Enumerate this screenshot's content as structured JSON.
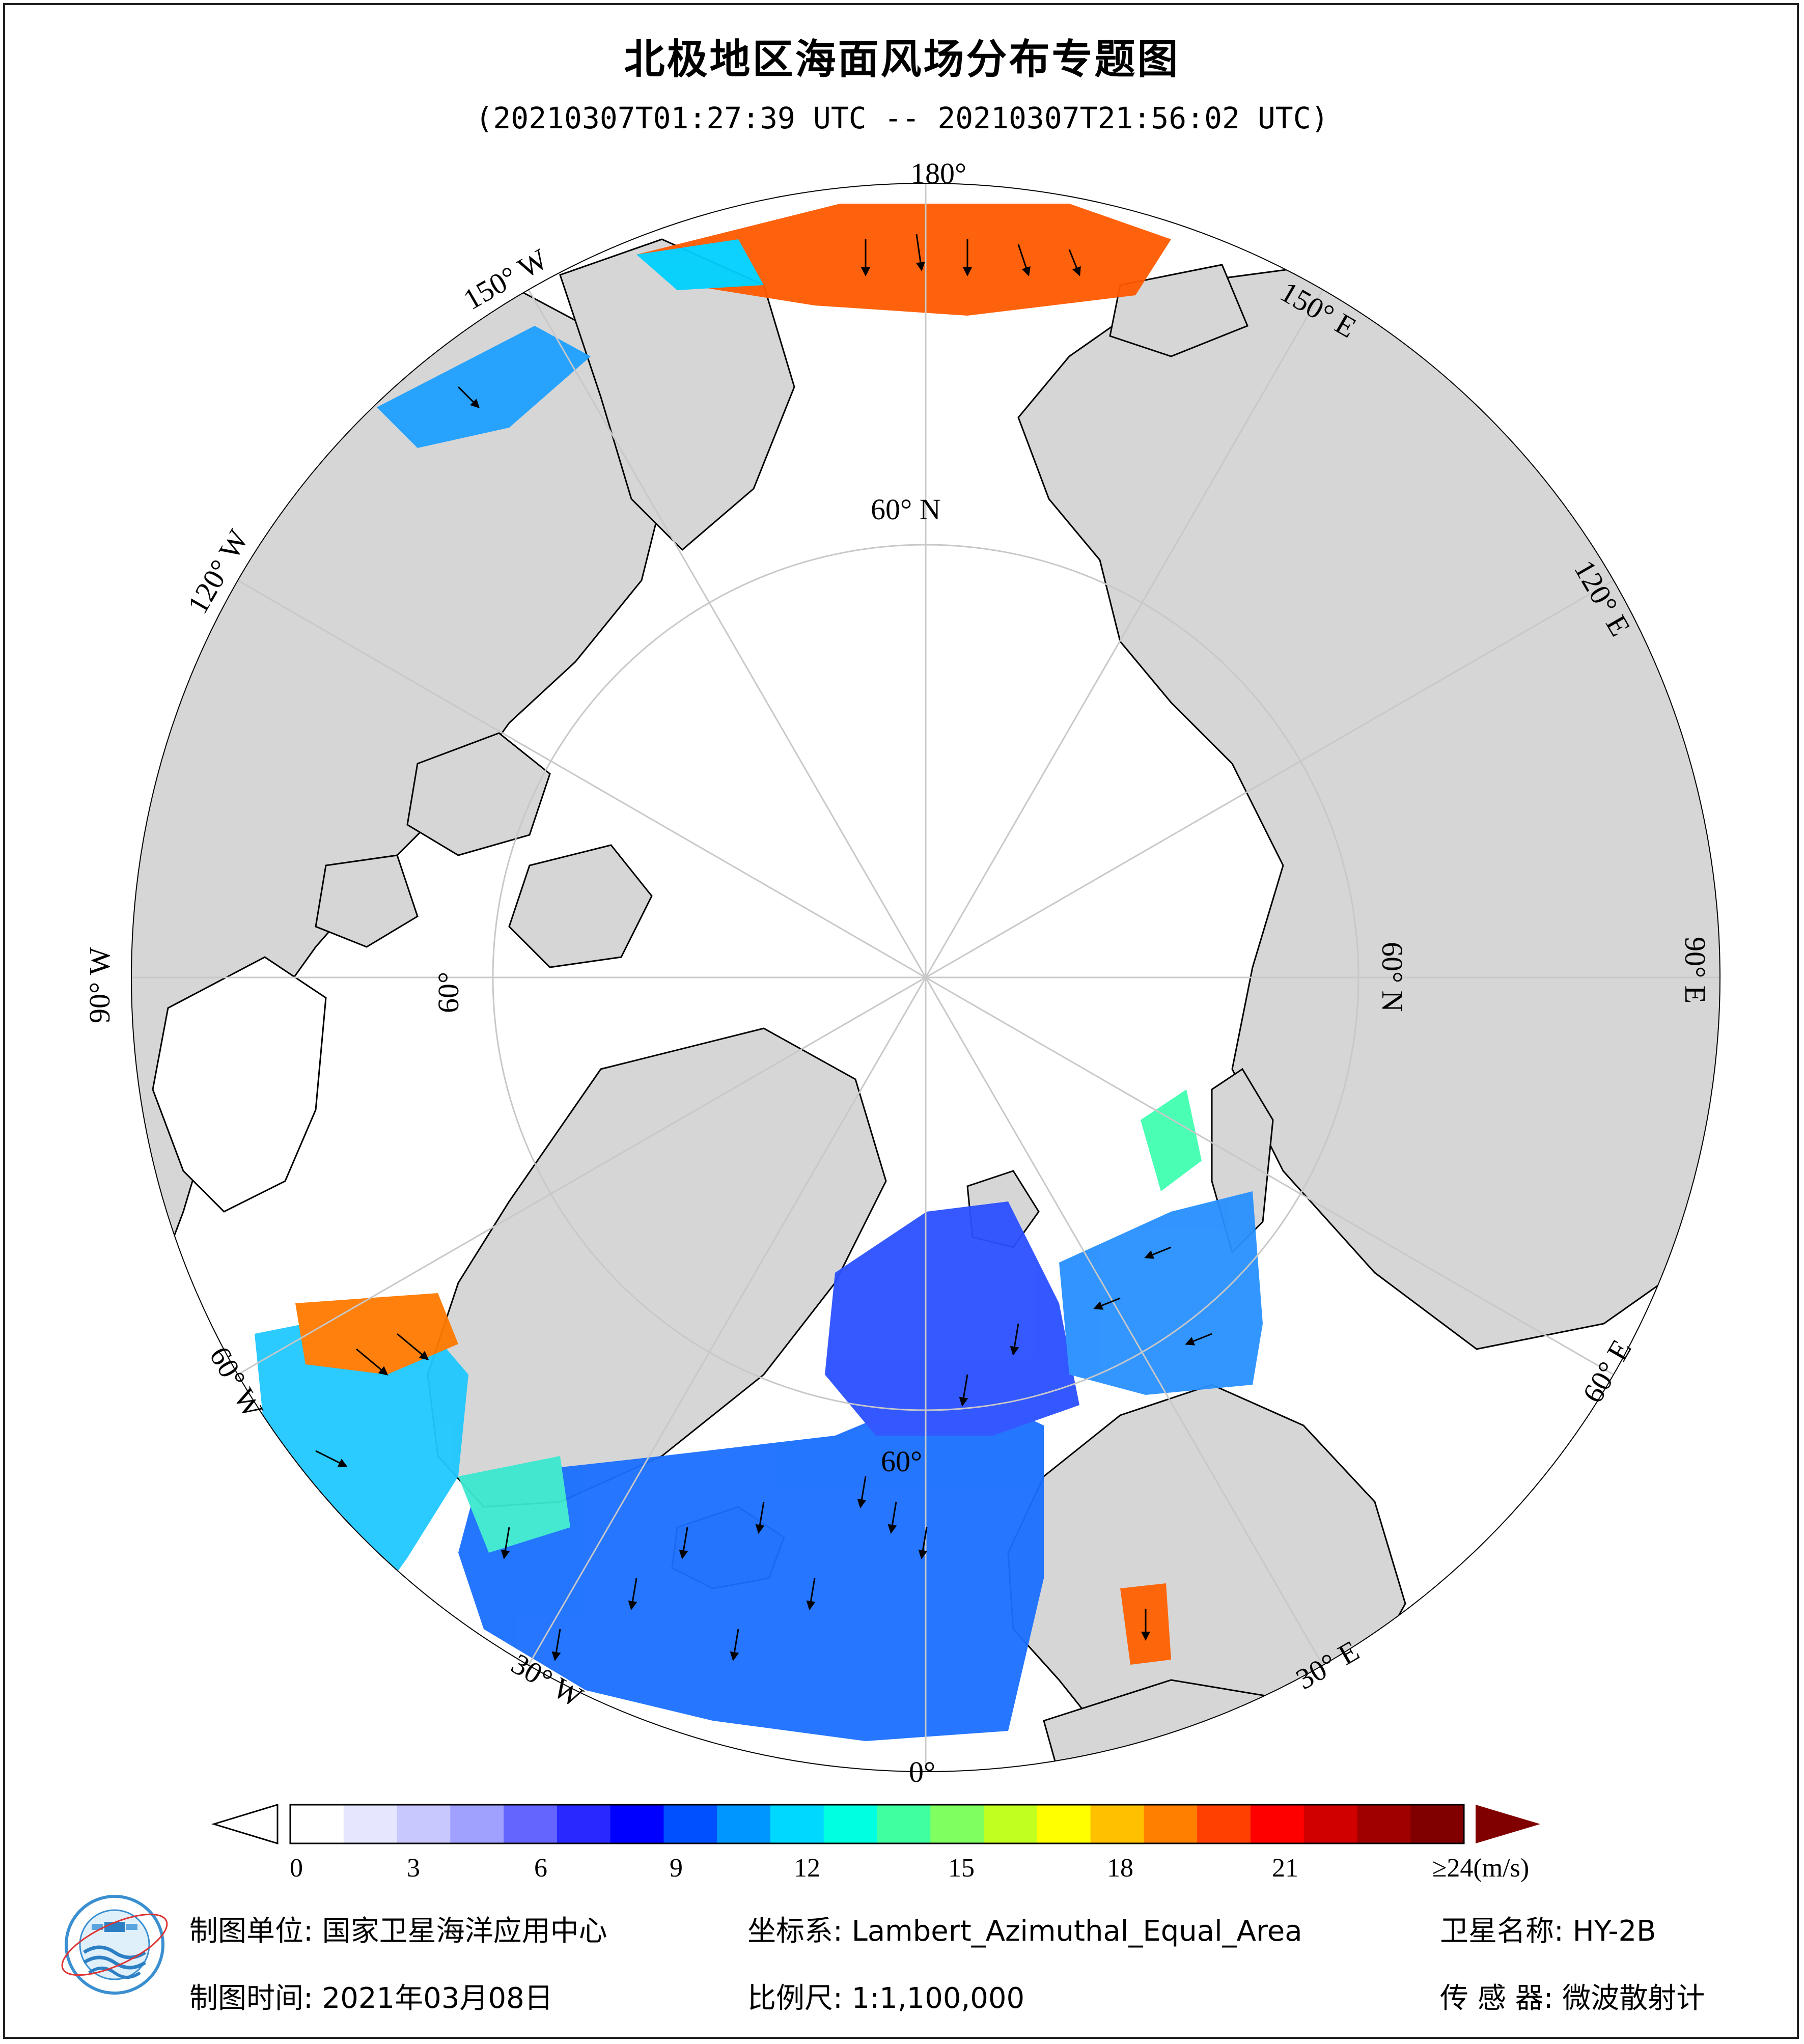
{
  "title": "北极地区海面风场分布专题图",
  "subtitle": "(20210307T01:27:39 UTC -- 20210307T21:56:02 UTC)",
  "map": {
    "longitude_labels": [
      "180°",
      "150° E",
      "120° E",
      "90° E",
      "60° E",
      "30° E",
      "0°",
      "30° W",
      "60° W",
      "90° W",
      "120° W",
      "150° W"
    ],
    "latitude_labels": [
      "60° N",
      "60° N",
      "60°",
      "60°"
    ],
    "colors": {
      "land": "#d6d6d6",
      "ocean_ice": "#ffffff",
      "coast": "#000000",
      "graticule": "#c8c8c8"
    }
  },
  "colorbar": {
    "ticks": [
      "0",
      "3",
      "6",
      "9",
      "12",
      "15",
      "18",
      "21"
    ],
    "max_label": "≥24(m/s)",
    "range": [
      0,
      24
    ],
    "palette": [
      "#ffffff",
      "#e6e6ff",
      "#c8c8ff",
      "#a0a0ff",
      "#6464ff",
      "#2828ff",
      "#0000ff",
      "#0050ff",
      "#0096ff",
      "#00d8ff",
      "#00ffe0",
      "#40ffa0",
      "#80ff60",
      "#c0ff20",
      "#ffff00",
      "#ffc000",
      "#ff8000",
      "#ff4000",
      "#ff0000",
      "#d00000",
      "#a00000",
      "#800000"
    ]
  },
  "footer": {
    "unit_label": "制图单位: 国家卫星海洋应用中心",
    "date_label": "制图时间: 2021年03月08日",
    "crs_label": "坐标系: Lambert_Azimuthal_Equal_Area",
    "scale_label": "比例尺: 1:1,100,000",
    "satellite_label": "卫星名称: HY-2B",
    "sensor_label": "传 感 器: 微波散射计"
  },
  "logo": {
    "icon": "nsoas-logo-icon"
  }
}
